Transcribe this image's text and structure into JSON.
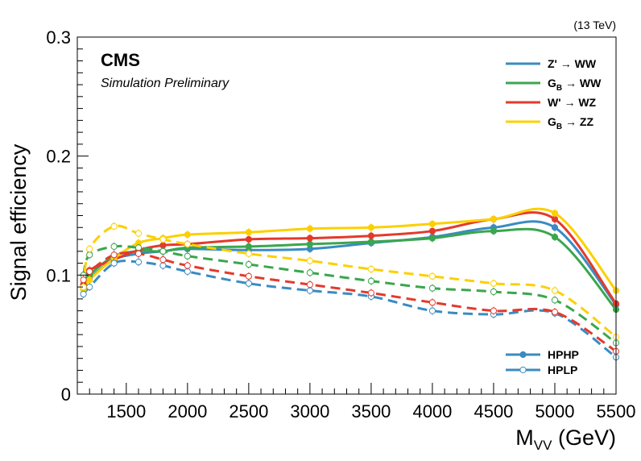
{
  "chart_data": {
    "type": "line",
    "energy_label": "(13 TeV)",
    "experiment": "CMS",
    "subtitle": "Simulation Preliminary",
    "xlabel": {
      "main": "M",
      "sub": "VV",
      "unit": " (GeV)"
    },
    "ylabel": "Signal efficiency",
    "xlim": [
      1100,
      5500
    ],
    "ylim": [
      0,
      0.3
    ],
    "x_ticks": [
      1500,
      2000,
      2500,
      3000,
      3500,
      4000,
      4500,
      5000,
      5500
    ],
    "y_ticks": [
      0,
      0.1,
      0.2,
      0.3
    ],
    "y_tick_labels": [
      "0",
      "0.1",
      "0.2",
      "0.3"
    ],
    "grid": false,
    "legend_processes": {
      "placement": "top-right",
      "entries": [
        {
          "key": "zww",
          "pre": "Z' ",
          "sub": "",
          "post": "→ WW",
          "color": "#3b8bc2"
        },
        {
          "key": "gbww",
          "pre": "G",
          "sub": "B",
          "post": "→ WW",
          "color": "#3aa64e"
        },
        {
          "key": "wwz",
          "pre": "W' ",
          "sub": "",
          "post": "→ WZ",
          "color": "#e33a2c"
        },
        {
          "key": "gbzz",
          "pre": "G",
          "sub": "B",
          "post": "→ ZZ",
          "color": "#fcd000"
        }
      ]
    },
    "legend_categories": {
      "placement": "bottom-right",
      "entries": [
        {
          "label": "HPHP",
          "style": "solid",
          "marker": "filled"
        },
        {
          "label": "HPLP",
          "style": "dashed",
          "marker": "open"
        }
      ]
    },
    "series": [
      {
        "name": "Z' → WW",
        "category": "HPHP",
        "color": "#3b8bc2",
        "x": [
          1150,
          1200,
          1400,
          1600,
          1800,
          2000,
          2500,
          3000,
          3500,
          4000,
          4500,
          5000,
          5500
        ],
        "y": [
          0.088,
          0.097,
          0.113,
          0.118,
          0.12,
          0.122,
          0.121,
          0.122,
          0.127,
          0.132,
          0.14,
          0.14,
          0.075
        ]
      },
      {
        "name": "G_B → WW",
        "category": "HPHP",
        "color": "#3aa64e",
        "x": [
          1150,
          1200,
          1400,
          1600,
          1800,
          2000,
          2500,
          3000,
          3500,
          4000,
          4500,
          5000,
          5500
        ],
        "y": [
          0.092,
          0.1,
          0.116,
          0.12,
          0.12,
          0.123,
          0.124,
          0.126,
          0.128,
          0.131,
          0.137,
          0.132,
          0.071
        ]
      },
      {
        "name": "W' → WZ",
        "category": "HPHP",
        "color": "#e33a2c",
        "x": [
          1150,
          1200,
          1400,
          1600,
          1800,
          2000,
          2500,
          3000,
          3500,
          4000,
          4500,
          5000,
          5500
        ],
        "y": [
          0.092,
          0.104,
          0.113,
          0.121,
          0.125,
          0.126,
          0.13,
          0.131,
          0.133,
          0.137,
          0.147,
          0.147,
          0.076
        ]
      },
      {
        "name": "G_B → ZZ",
        "category": "HPHP",
        "color": "#fcd000",
        "x": [
          1150,
          1200,
          1400,
          1600,
          1800,
          2000,
          2500,
          3000,
          3500,
          4000,
          4500,
          5000,
          5500
        ],
        "y": [
          0.088,
          0.096,
          0.114,
          0.127,
          0.131,
          0.134,
          0.136,
          0.139,
          0.14,
          0.143,
          0.147,
          0.152,
          0.087
        ]
      },
      {
        "name": "Z' → WW",
        "category": "HPLP",
        "color": "#3b8bc2",
        "x": [
          1150,
          1200,
          1400,
          1600,
          1800,
          2000,
          2500,
          3000,
          3500,
          4000,
          4500,
          5000,
          5500
        ],
        "y": [
          0.084,
          0.09,
          0.11,
          0.111,
          0.108,
          0.103,
          0.093,
          0.087,
          0.082,
          0.07,
          0.067,
          0.068,
          0.031
        ]
      },
      {
        "name": "G_B → WW",
        "category": "HPLP",
        "color": "#3aa64e",
        "x": [
          1150,
          1200,
          1400,
          1600,
          1800,
          2000,
          2500,
          3000,
          3500,
          4000,
          4500,
          5000,
          5500
        ],
        "y": [
          0.1,
          0.117,
          0.124,
          0.123,
          0.12,
          0.116,
          0.109,
          0.102,
          0.095,
          0.089,
          0.086,
          0.079,
          0.043
        ]
      },
      {
        "name": "W' → WZ",
        "category": "HPLP",
        "color": "#e33a2c",
        "x": [
          1150,
          1200,
          1400,
          1600,
          1800,
          2000,
          2500,
          3000,
          3500,
          4000,
          4500,
          5000,
          5500
        ],
        "y": [
          0.096,
          0.103,
          0.117,
          0.118,
          0.113,
          0.108,
          0.099,
          0.092,
          0.085,
          0.077,
          0.07,
          0.069,
          0.036
        ]
      },
      {
        "name": "G_B → ZZ",
        "category": "HPLP",
        "color": "#fcd000",
        "x": [
          1150,
          1200,
          1400,
          1600,
          1800,
          2000,
          2500,
          3000,
          3500,
          4000,
          4500,
          5000,
          5500
        ],
        "y": [
          0.09,
          0.122,
          0.141,
          0.135,
          0.13,
          0.126,
          0.118,
          0.112,
          0.105,
          0.099,
          0.093,
          0.087,
          0.048
        ]
      }
    ]
  }
}
